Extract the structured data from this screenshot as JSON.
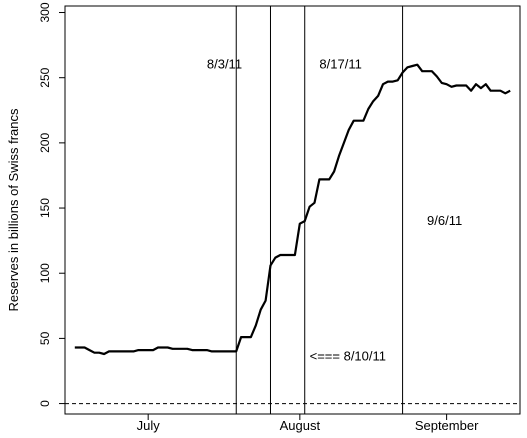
{
  "chart_data": {
    "type": "line",
    "title": "",
    "xlabel": "",
    "ylabel": "Reserves in billions of Swiss francs",
    "ylim": [
      -8,
      305
    ],
    "xlim": [
      "2011-06-29",
      "2011-09-30"
    ],
    "grid": false,
    "y_ticks": [
      0,
      50,
      100,
      150,
      200,
      250,
      300
    ],
    "x_ticks": [
      {
        "date": "2011-07-16",
        "label": "July"
      },
      {
        "date": "2011-08-16",
        "label": "August"
      },
      {
        "date": "2011-09-15",
        "label": "September"
      }
    ],
    "vlines": [
      "2011-08-03",
      "2011-08-10",
      "2011-08-17",
      "2011-09-06"
    ],
    "hline": {
      "y": 0,
      "style": "dashed"
    },
    "annotations": [
      {
        "text": "8/3/11",
        "date": "2011-07-28",
        "y": 257
      },
      {
        "text": "8/17/11",
        "date": "2011-08-20",
        "y": 257
      },
      {
        "text": "9/6/11",
        "date": "2011-09-11",
        "y": 137
      },
      {
        "text": "<=== 8/10/11",
        "date": "2011-08-18",
        "y": 33
      }
    ],
    "series": [
      {
        "color": "#000000",
        "x": [
          "2011-07-01",
          "2011-07-02",
          "2011-07-03",
          "2011-07-04",
          "2011-07-05",
          "2011-07-06",
          "2011-07-07",
          "2011-07-08",
          "2011-07-09",
          "2011-07-10",
          "2011-07-11",
          "2011-07-12",
          "2011-07-13",
          "2011-07-14",
          "2011-07-15",
          "2011-07-16",
          "2011-07-17",
          "2011-07-18",
          "2011-07-19",
          "2011-07-20",
          "2011-07-21",
          "2011-07-22",
          "2011-07-23",
          "2011-07-24",
          "2011-07-25",
          "2011-07-26",
          "2011-07-27",
          "2011-07-28",
          "2011-07-29",
          "2011-07-30",
          "2011-07-31",
          "2011-08-01",
          "2011-08-02",
          "2011-08-03",
          "2011-08-04",
          "2011-08-05",
          "2011-08-06",
          "2011-08-07",
          "2011-08-08",
          "2011-08-09",
          "2011-08-10",
          "2011-08-11",
          "2011-08-12",
          "2011-08-13",
          "2011-08-14",
          "2011-08-15",
          "2011-08-16",
          "2011-08-17",
          "2011-08-18",
          "2011-08-19",
          "2011-08-20",
          "2011-08-21",
          "2011-08-22",
          "2011-08-23",
          "2011-08-24",
          "2011-08-25",
          "2011-08-26",
          "2011-08-27",
          "2011-08-28",
          "2011-08-29",
          "2011-08-30",
          "2011-08-31",
          "2011-09-01",
          "2011-09-02",
          "2011-09-03",
          "2011-09-04",
          "2011-09-05",
          "2011-09-06",
          "2011-09-07",
          "2011-09-08",
          "2011-09-09",
          "2011-09-10",
          "2011-09-11",
          "2011-09-12",
          "2011-09-13",
          "2011-09-14",
          "2011-09-15",
          "2011-09-16",
          "2011-09-17",
          "2011-09-18",
          "2011-09-19",
          "2011-09-20",
          "2011-09-21",
          "2011-09-22",
          "2011-09-23",
          "2011-09-24",
          "2011-09-25",
          "2011-09-26",
          "2011-09-27",
          "2011-09-28"
        ],
        "values": [
          43,
          43,
          43,
          41,
          39,
          39,
          38,
          40,
          40,
          40,
          40,
          40,
          40,
          41,
          41,
          41,
          41,
          43,
          43,
          43,
          42,
          42,
          42,
          42,
          41,
          41,
          41,
          41,
          40,
          40,
          40,
          40,
          40,
          40,
          51,
          51,
          51,
          60,
          72,
          79,
          106,
          112,
          114,
          114,
          114,
          114,
          138,
          140,
          151,
          154,
          172,
          172,
          172,
          178,
          190,
          200,
          210,
          217,
          217,
          217,
          226,
          232,
          236,
          245,
          247,
          247,
          248,
          254,
          258,
          259,
          260,
          255,
          255,
          255,
          251,
          246,
          245,
          243,
          244,
          244,
          244,
          240,
          245,
          242,
          245,
          240,
          240,
          240,
          238,
          240
        ]
      }
    ]
  }
}
